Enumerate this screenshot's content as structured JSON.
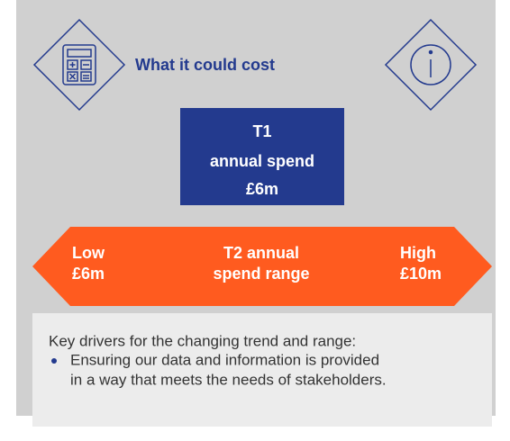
{
  "header": {
    "title": "What it could cost"
  },
  "t1": {
    "lines": [
      "T1",
      "annual spend",
      "£6m"
    ]
  },
  "range": {
    "low": [
      "Low",
      "£6m"
    ],
    "center": [
      "T2 annual",
      "spend range"
    ],
    "high": [
      "High",
      "£10m"
    ]
  },
  "drivers": {
    "intro": "Key drivers for the changing trend and range:",
    "bullets": [
      [
        "Ensuring our data and information is provided",
        "in a way that meets the needs of stakeholders."
      ]
    ]
  }
}
